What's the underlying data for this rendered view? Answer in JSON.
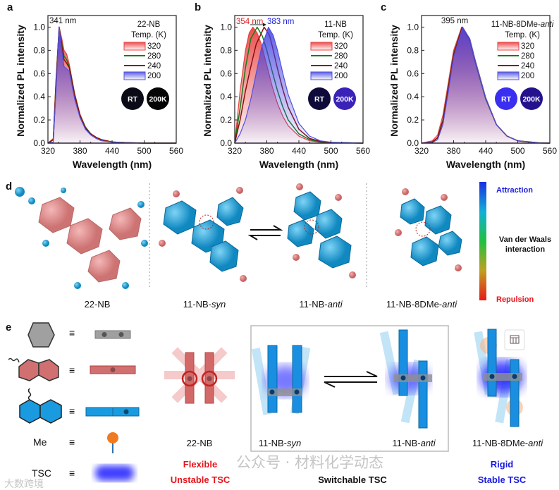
{
  "panel_labels": [
    "a",
    "b",
    "c",
    "d",
    "e"
  ],
  "chart_data": [
    {
      "type": "line",
      "title": "22-NB",
      "xlabel": "Wavelength (nm)",
      "ylabel": "Normalized PL intensity",
      "xlim": [
        320,
        560
      ],
      "ylim": [
        0,
        1.1
      ],
      "xticks": [
        "320",
        "380",
        "440",
        "500",
        "560"
      ],
      "yticks": [
        "0.0",
        "0.2",
        "0.4",
        "0.6",
        "0.8",
        "1.0"
      ],
      "legend_title": "Temp. (K)",
      "legend_name": "22-NB",
      "legend_name_italic": "",
      "annotations": [
        {
          "text": "341 nm",
          "color": "#111111"
        }
      ],
      "badges": [
        {
          "text": "RT",
          "color": "#0b0b18"
        },
        {
          "text": "200K",
          "color": "#050505"
        }
      ],
      "series": [
        {
          "name": "320",
          "style": "area",
          "color": "#e84040",
          "x": [
            320,
            330,
            335,
            341,
            346,
            350,
            355,
            360,
            370,
            380,
            390,
            400,
            410,
            420,
            440,
            460,
            500,
            560
          ],
          "y": [
            0,
            0.04,
            0.55,
            1.0,
            0.9,
            0.8,
            0.77,
            0.68,
            0.43,
            0.25,
            0.14,
            0.08,
            0.05,
            0.03,
            0.01,
            0.004,
            0,
            0
          ]
        },
        {
          "name": "280",
          "style": "line",
          "color": "#1a7a1a",
          "x": [
            320,
            330,
            335,
            341,
            346,
            350,
            355,
            360,
            370,
            380,
            390,
            400,
            410,
            420,
            440,
            460,
            500,
            560
          ],
          "y": [
            0,
            0.03,
            0.52,
            1.0,
            0.86,
            0.75,
            0.72,
            0.66,
            0.42,
            0.24,
            0.14,
            0.08,
            0.05,
            0.03,
            0.01,
            0.004,
            0,
            0
          ]
        },
        {
          "name": "240",
          "style": "line",
          "color": "#8a0f0f",
          "x": [
            320,
            330,
            335,
            341,
            346,
            350,
            355,
            360,
            370,
            380,
            390,
            400,
            410,
            420,
            440,
            460,
            500,
            560
          ],
          "y": [
            0,
            0.03,
            0.5,
            1.0,
            0.84,
            0.72,
            0.69,
            0.65,
            0.41,
            0.24,
            0.13,
            0.08,
            0.05,
            0.03,
            0.01,
            0.004,
            0,
            0
          ]
        },
        {
          "name": "200",
          "style": "area",
          "color": "#5050e0",
          "x": [
            320,
            330,
            335,
            341,
            346,
            350,
            355,
            360,
            370,
            380,
            390,
            400,
            410,
            420,
            440,
            460,
            500,
            560
          ],
          "y": [
            0,
            0.01,
            0.45,
            1.0,
            0.8,
            0.66,
            0.64,
            0.62,
            0.38,
            0.22,
            0.12,
            0.07,
            0.04,
            0.02,
            0.01,
            0.003,
            0,
            0
          ]
        }
      ]
    },
    {
      "type": "line",
      "title": "11-NB",
      "xlabel": "Wavelength (nm)",
      "ylabel": "Normalized PL intensity",
      "xlim": [
        320,
        560
      ],
      "ylim": [
        0,
        1.1
      ],
      "xticks": [
        "320",
        "380",
        "440",
        "500",
        "560"
      ],
      "yticks": [
        "0.0",
        "0.2",
        "0.4",
        "0.6",
        "0.8",
        "1.0"
      ],
      "legend_title": "Temp. (K)",
      "legend_name": "11-NB",
      "legend_name_italic": "",
      "annotations": [
        {
          "text": "354 nm",
          "color": "#e02020"
        },
        {
          "text": "383 nm",
          "color": "#2020e0"
        }
      ],
      "badges": [
        {
          "text": "RT",
          "color": "#0e0b3a"
        },
        {
          "text": "200K",
          "color": "#3a22b8"
        }
      ],
      "series": [
        {
          "name": "320",
          "style": "area",
          "color": "#e84040",
          "x": [
            320,
            330,
            340,
            347,
            354,
            362,
            370,
            380,
            390,
            400,
            410,
            420,
            440,
            460,
            480,
            500,
            560
          ],
          "y": [
            0,
            0.45,
            0.8,
            0.95,
            1.0,
            0.95,
            0.85,
            0.67,
            0.49,
            0.34,
            0.23,
            0.15,
            0.06,
            0.02,
            0.008,
            0.003,
            0
          ]
        },
        {
          "name": "280",
          "style": "line",
          "color": "#1a7a1a",
          "x": [
            320,
            330,
            340,
            350,
            362,
            372,
            380,
            390,
            400,
            410,
            420,
            440,
            460,
            480,
            500,
            560
          ],
          "y": [
            0,
            0.3,
            0.65,
            0.9,
            1.0,
            0.92,
            0.8,
            0.62,
            0.45,
            0.31,
            0.2,
            0.08,
            0.03,
            0.01,
            0.004,
            0
          ]
        },
        {
          "name": "240",
          "style": "line",
          "color": "#8a0f0f",
          "x": [
            320,
            330,
            340,
            350,
            360,
            375,
            385,
            390,
            400,
            410,
            420,
            440,
            460,
            480,
            500,
            560
          ],
          "y": [
            0,
            0.2,
            0.45,
            0.66,
            0.85,
            1.0,
            0.93,
            0.84,
            0.64,
            0.46,
            0.31,
            0.12,
            0.04,
            0.015,
            0.005,
            0
          ]
        },
        {
          "name": "200",
          "style": "area",
          "color": "#5050e0",
          "x": [
            320,
            330,
            340,
            350,
            360,
            370,
            383,
            392,
            400,
            410,
            420,
            440,
            460,
            480,
            500,
            560
          ],
          "y": [
            0,
            0.08,
            0.2,
            0.38,
            0.6,
            0.82,
            1.0,
            0.93,
            0.8,
            0.6,
            0.42,
            0.17,
            0.06,
            0.02,
            0.008,
            0
          ]
        }
      ]
    },
    {
      "type": "line",
      "title": "11-NB-8DMe-anti",
      "xlabel": "Wavelength (nm)",
      "ylabel": "Normalized PL intensity",
      "xlim": [
        320,
        560
      ],
      "ylim": [
        0,
        1.1
      ],
      "xticks": [
        "320",
        "380",
        "440",
        "500",
        "560"
      ],
      "yticks": [
        "0.0",
        "0.2",
        "0.4",
        "0.6",
        "0.8",
        "1.0"
      ],
      "legend_title": "Temp. (K)",
      "legend_name": "11-NB-8DMe-",
      "legend_name_italic": "anti",
      "annotations": [
        {
          "text": "395 nm",
          "color": "#111111"
        }
      ],
      "badges": [
        {
          "text": "RT",
          "color": "#3a2ef0"
        },
        {
          "text": "200K",
          "color": "#23128c"
        }
      ],
      "series": [
        {
          "name": "320",
          "style": "area",
          "color": "#e84040",
          "x": [
            320,
            340,
            350,
            360,
            370,
            380,
            395,
            410,
            420,
            440,
            460,
            480,
            500,
            540,
            560
          ],
          "y": [
            0,
            0.02,
            0.07,
            0.24,
            0.52,
            0.8,
            1.0,
            0.88,
            0.7,
            0.38,
            0.16,
            0.06,
            0.02,
            0.002,
            0
          ]
        },
        {
          "name": "280",
          "style": "line",
          "color": "#1a7a1a",
          "x": [
            320,
            340,
            350,
            360,
            370,
            380,
            396,
            410,
            420,
            440,
            460,
            480,
            500,
            540,
            560
          ],
          "y": [
            0,
            0.01,
            0.05,
            0.2,
            0.48,
            0.77,
            1.0,
            0.89,
            0.71,
            0.38,
            0.16,
            0.06,
            0.02,
            0.002,
            0
          ]
        },
        {
          "name": "240",
          "style": "line",
          "color": "#8a0f0f",
          "x": [
            320,
            340,
            350,
            360,
            370,
            380,
            396,
            410,
            420,
            440,
            460,
            480,
            500,
            540,
            560
          ],
          "y": [
            0,
            0.01,
            0.045,
            0.19,
            0.47,
            0.76,
            1.0,
            0.9,
            0.72,
            0.39,
            0.16,
            0.06,
            0.02,
            0.002,
            0
          ]
        },
        {
          "name": "200",
          "style": "area",
          "color": "#5050e0",
          "x": [
            320,
            340,
            350,
            360,
            370,
            380,
            397,
            410,
            420,
            440,
            460,
            480,
            500,
            540,
            560
          ],
          "y": [
            0,
            0.005,
            0.03,
            0.16,
            0.44,
            0.74,
            1.0,
            0.9,
            0.72,
            0.39,
            0.16,
            0.06,
            0.02,
            0.002,
            0
          ]
        }
      ]
    }
  ],
  "panel_d": {
    "molecules": [
      {
        "name": "22-NB",
        "italic": ""
      },
      {
        "name": "11-NB-",
        "italic": "syn"
      },
      {
        "name": "11-NB-",
        "italic": "anti"
      },
      {
        "name": "11-NB-8DMe-",
        "italic": "anti"
      }
    ],
    "colorbar": {
      "top": "Attraction",
      "middle": "Van der Waals interaction",
      "bottom": "Repulsion",
      "top_color": "#1a1ae0",
      "bottom_color": "#e8141c"
    }
  },
  "panel_e": {
    "legend": [
      {
        "label": "",
        "symbol": "benzene"
      },
      {
        "label": "",
        "symbol": "naphthalene-2-yl"
      },
      {
        "label": "",
        "symbol": "naphthalene-1-yl"
      },
      {
        "label": "Me",
        "symbol": "methyl"
      },
      {
        "label": "TSC",
        "symbol": "tsc-cloud"
      }
    ],
    "equiv": "≡",
    "captions": [
      {
        "name": "22-NB",
        "italic": ""
      },
      {
        "name": "11-NB-",
        "italic": "syn"
      },
      {
        "name": "11-NB-",
        "italic": "anti"
      },
      {
        "name": "11-NB-8DMe-",
        "italic": "anti"
      }
    ],
    "flexible": "Flexible",
    "unstable": "Unstable TSC",
    "switchable": "Switchable TSC",
    "rigid": "Rigid",
    "stable": "Stable TSC"
  },
  "watermarks": {
    "right": "公众号 · 材料化学动态",
    "left": "大数跨境"
  }
}
